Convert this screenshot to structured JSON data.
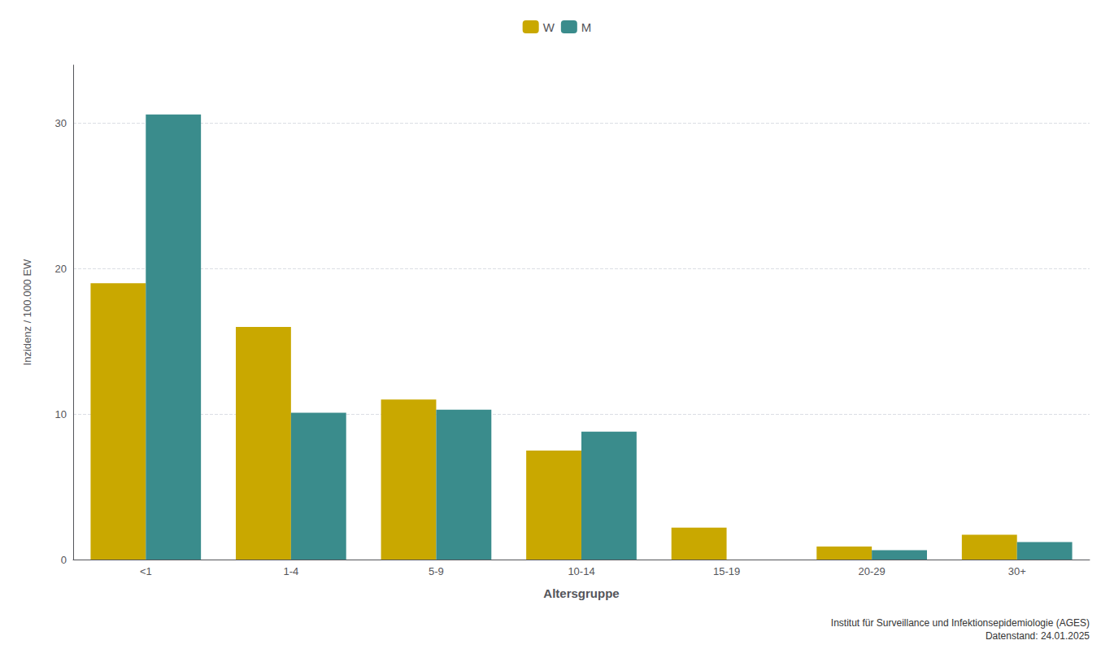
{
  "chart_data": {
    "type": "bar",
    "xlabel": "Altersgruppe",
    "ylabel": "Inzidenz / 100.000 EW",
    "categories": [
      "<1",
      "1-4",
      "5-9",
      "10-14",
      "15-19",
      "20-29",
      "30+"
    ],
    "series": [
      {
        "name": "W",
        "color": "#C9A800",
        "values": [
          19.0,
          16.0,
          11.0,
          7.5,
          2.2,
          0.9,
          1.7
        ]
      },
      {
        "name": "M",
        "color": "#3A8C8C",
        "values": [
          30.6,
          10.1,
          10.3,
          8.8,
          0.0,
          0.65,
          1.2
        ]
      }
    ],
    "ylim": [
      0,
      34
    ],
    "yticks": [
      0,
      10,
      20,
      30
    ],
    "grid": true,
    "legend": "top",
    "annotations": [
      "Institut für Surveillance und Infektionsepidemiologie (AGES)",
      "Datenstand: 24.01.2025"
    ]
  }
}
